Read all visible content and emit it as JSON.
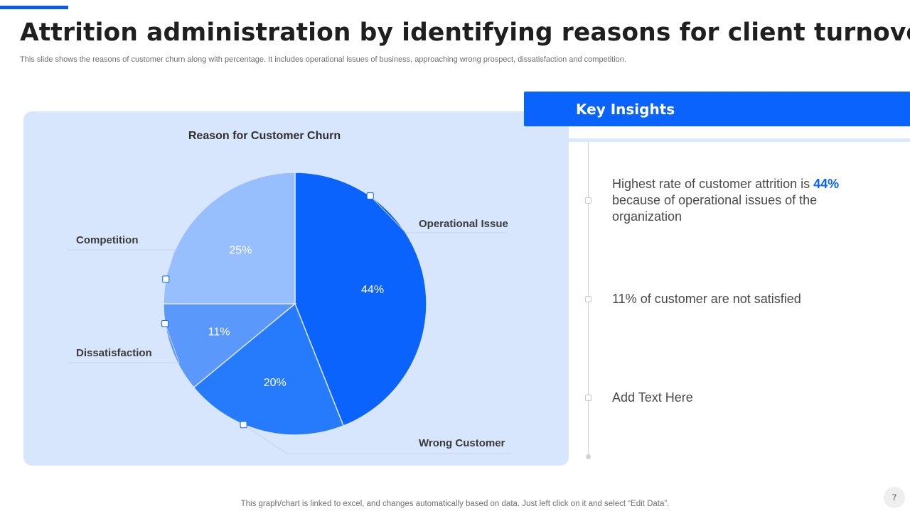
{
  "header": {
    "title": "Attrition administration by identifying reasons for client turnover",
    "subtitle": "This slide shows the reasons of customer churn along with percentage. It includes operational issues of business, approaching wrong prospect, dissatisfaction and competition."
  },
  "chart_data": {
    "type": "pie",
    "title": "Reason for Customer Churn",
    "categories": [
      "Operational Issue",
      "Wrong Customer",
      "Dissatisfaction",
      "Competition"
    ],
    "values": [
      44,
      20,
      11,
      25
    ],
    "value_labels": [
      "44%",
      "20%",
      "11%",
      "25%"
    ],
    "colors": [
      "#0a63fd",
      "#267bfd",
      "#5a98fc",
      "#97befd"
    ],
    "start_angle": "12 o'clock",
    "direction": "clockwise"
  },
  "insights": {
    "heading": "Key Insights",
    "items": [
      {
        "pre": "Highest rate of customer attrition is ",
        "highlight": "44%",
        "post": " because of operational issues of the organization"
      },
      {
        "pre": "11% of customer are not satisfied",
        "highlight": "",
        "post": ""
      },
      {
        "pre": "Add Text Here",
        "highlight": "",
        "post": ""
      }
    ]
  },
  "footer": {
    "note": "This graph/chart is linked to excel,  and changes automatically based on data. Just left click on it and select “Edit Data”.",
    "page_number": "7"
  },
  "colors": {
    "accent": "#0a63fd",
    "card_background": "#d7e6fd"
  }
}
